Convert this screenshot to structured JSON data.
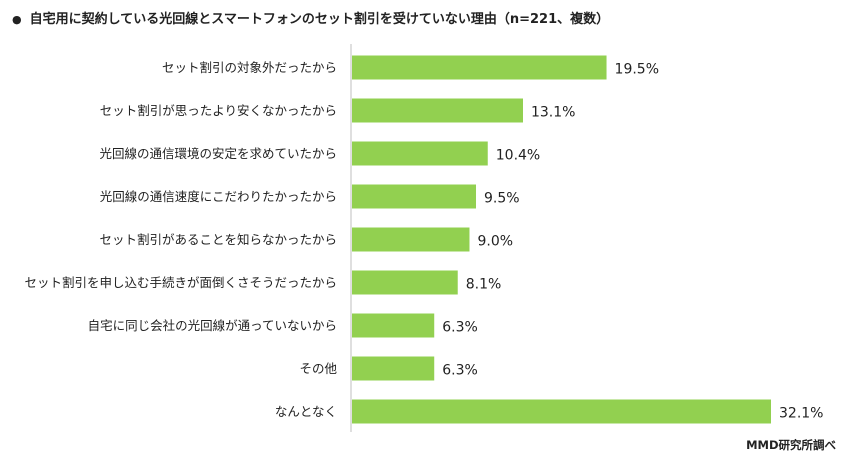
{
  "chart_data": {
    "type": "bar",
    "orientation": "horizontal",
    "title": "自宅用に契約している光回線とスマートフォンのセット割引を受けていない理由（n=221、複数）",
    "categories": [
      "セット割引の対象外だったから",
      "セット割引が思ったより安くなかったから",
      "光回線の通信環境の安定を求めていたから",
      "光回線の通信速度にこだわりたかったから",
      "セット割引があることを知らなかったから",
      "セット割引を申し込む手続きが面倒くさそうだったから",
      "自宅に同じ会社の光回線が通っていないから",
      "その他",
      "なんとなく"
    ],
    "values": [
      19.5,
      13.1,
      10.4,
      9.5,
      9.0,
      8.1,
      6.3,
      6.3,
      32.1
    ],
    "value_labels": [
      "19.5%",
      "13.1%",
      "10.4%",
      "9.5%",
      "9.0%",
      "8.1%",
      "6.3%",
      "6.3%",
      "32.1%"
    ],
    "unit": "%",
    "xlim": [
      0,
      32.1
    ],
    "grid": false,
    "legend": "none",
    "bar_color": "#92d050"
  },
  "header": {
    "bullet": "●"
  },
  "footer": {
    "source": "MMD研究所調べ"
  },
  "colors": {
    "bar": "#92d050",
    "axis": "#bfbfbf",
    "text": "#222222"
  }
}
